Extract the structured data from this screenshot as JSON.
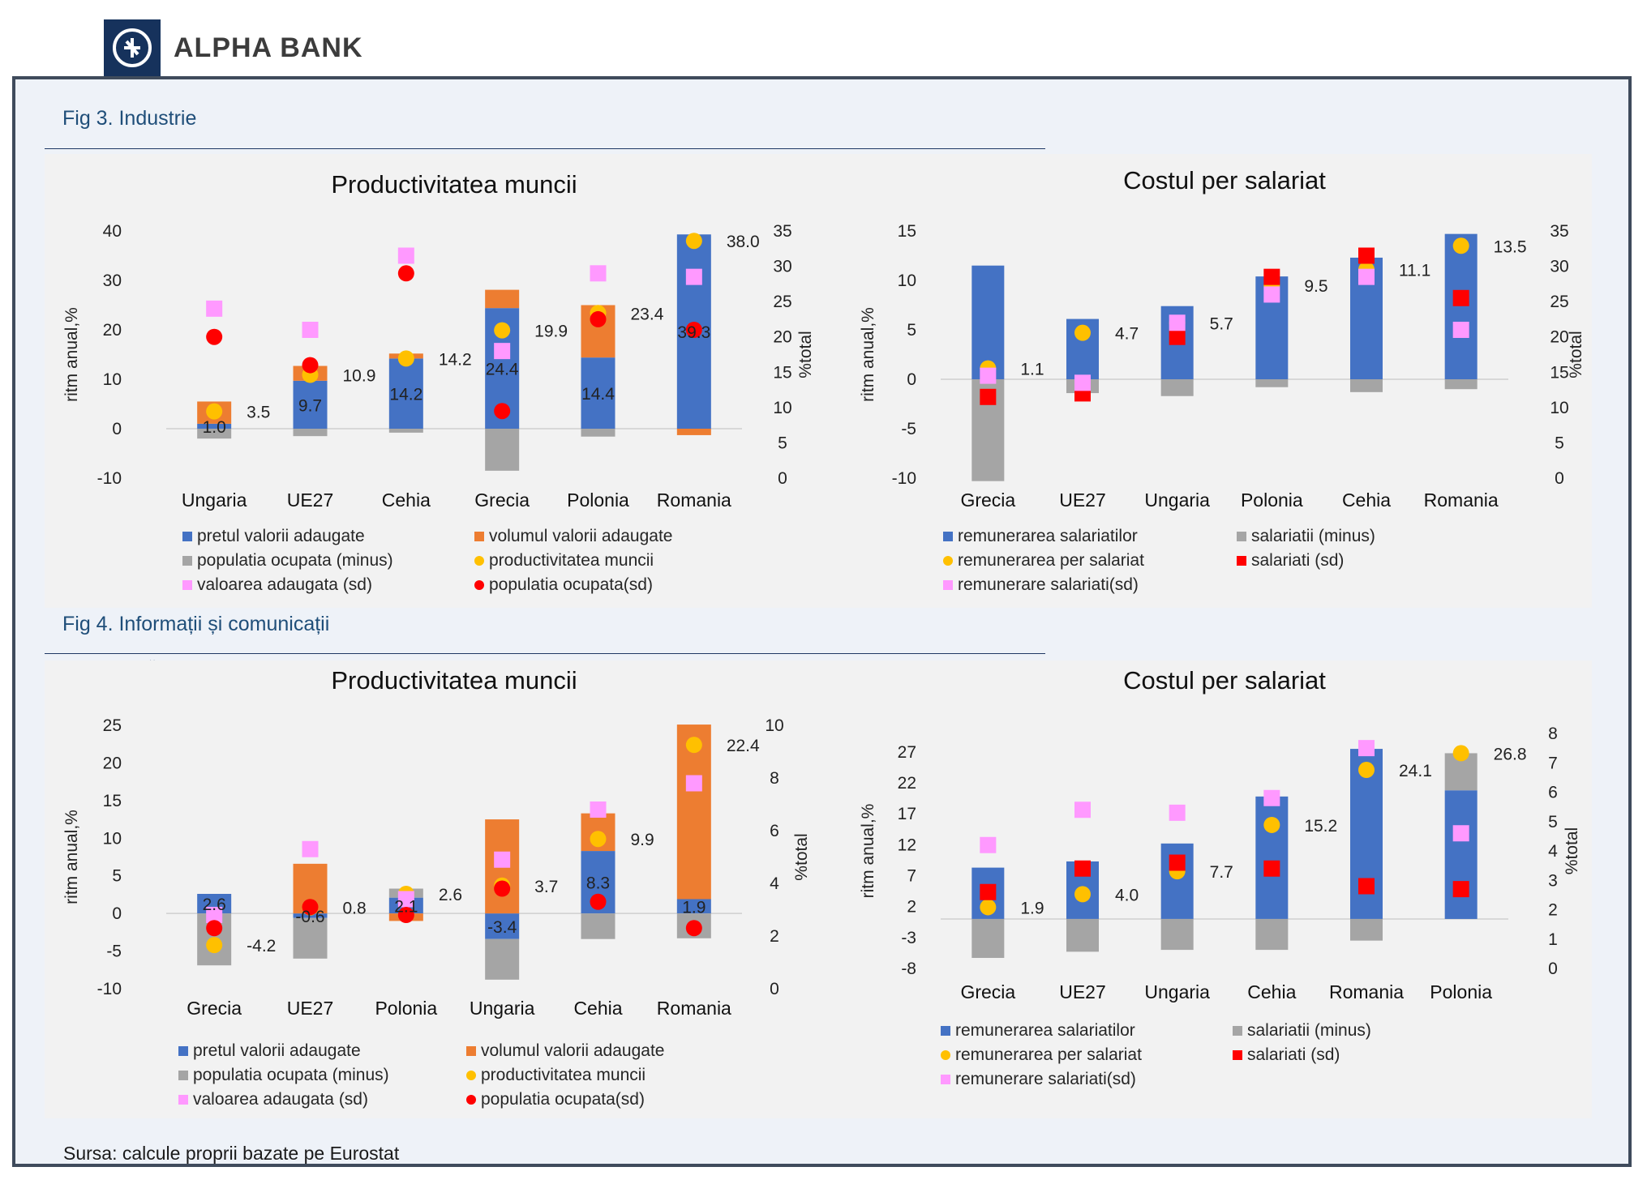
{
  "header": {
    "brand": "ALPHA BANK"
  },
  "fig3_title": "Fig 3. Industrie",
  "fig4_title": "Fig 4. Informații și comunicații",
  "source": "Sursa: calcule proprii bazate pe Eurostat",
  "colors": {
    "blue": "#4472c4",
    "orange": "#ed7d31",
    "gray": "#a5a5a5",
    "yellow": "#ffc000",
    "pink": "#ff99ff",
    "red": "#ff0000",
    "frame": "#3f4b5c",
    "title_blue": "#1f4e79"
  },
  "chart_data": [
    {
      "id": "c1",
      "type": "bar",
      "title": "Productivitatea muncii",
      "ylabel": "ritm anual,%",
      "y2label": "%total",
      "ylim": [
        -10,
        40
      ],
      "yticks": [
        -10,
        0,
        10,
        20,
        30,
        40
      ],
      "y2lim": [
        0,
        35
      ],
      "y2ticks": [
        0,
        5,
        10,
        15,
        20,
        25,
        30,
        35
      ],
      "categories": [
        "Ungaria",
        "UE27",
        "Cehia",
        "Grecia",
        "Polonia",
        "Romania"
      ],
      "bars": [
        {
          "name": "pretul valorii adaugate",
          "color": "blue",
          "values": [
            1.0,
            9.7,
            14.2,
            24.4,
            14.4,
            39.3
          ]
        },
        {
          "name": "volumul valorii adaugate",
          "color": "orange",
          "values": [
            4.5,
            3.0,
            1.0,
            3.7,
            10.6,
            -1.3
          ]
        },
        {
          "name": "populatia ocupata (minus)",
          "color": "gray",
          "values": [
            -2.0,
            -1.5,
            -0.8,
            -8.5,
            -1.6,
            0
          ]
        }
      ],
      "markers": [
        {
          "name": "productivitatea muncii",
          "color": "yellow",
          "shape": "circle",
          "axis": "left",
          "values": [
            3.5,
            10.9,
            14.2,
            19.9,
            23.4,
            38.0
          ]
        },
        {
          "name": "valoarea adaugata (sd)",
          "color": "pink",
          "shape": "square",
          "axis": "right",
          "values": [
            24.0,
            21.0,
            31.5,
            18.0,
            29.0,
            28.5
          ]
        },
        {
          "name": "populatia ocupata(sd)",
          "color": "red",
          "shape": "circle",
          "axis": "right",
          "values": [
            20.0,
            16.0,
            29.0,
            9.5,
            22.5,
            21.0
          ]
        }
      ],
      "labels_top": [
        "3.5",
        "10.9",
        "14.2",
        "19.9",
        "23.4",
        "38.0"
      ],
      "labels_inner": [
        "1.0",
        "9.7",
        "14.2",
        "24.4",
        "14.4",
        "39.3"
      ],
      "legend": [
        "pretul valorii adaugate",
        "volumul valorii adaugate",
        "populatia ocupata (minus)",
        "productivitatea muncii",
        "valoarea adaugata (sd)",
        "populatia ocupata(sd)"
      ]
    },
    {
      "id": "c2",
      "type": "bar",
      "title": "Costul per salariat",
      "ylabel": "ritm anual,%",
      "y2label": "%total",
      "ylim": [
        -10,
        15
      ],
      "yticks": [
        -10,
        -5,
        0,
        5,
        10,
        15
      ],
      "y2lim": [
        0,
        35
      ],
      "y2ticks": [
        0,
        5,
        10,
        15,
        20,
        25,
        30,
        35
      ],
      "categories": [
        "Grecia",
        "UE27",
        "Ungaria",
        "Polonia",
        "Cehia",
        "Romania"
      ],
      "bars": [
        {
          "name": "remunerarea salariatilor",
          "color": "blue",
          "values": [
            11.5,
            6.1,
            7.4,
            10.4,
            12.3,
            14.7
          ]
        },
        {
          "name": "salariatii (minus)",
          "color": "gray",
          "values": [
            -10.3,
            -1.4,
            -1.7,
            -0.8,
            -1.3,
            -1.0
          ]
        }
      ],
      "markers": [
        {
          "name": "remunerarea per salariat",
          "color": "yellow",
          "shape": "circle",
          "axis": "left",
          "values": [
            1.1,
            4.7,
            5.7,
            9.5,
            11.1,
            13.5
          ]
        },
        {
          "name": "salariati (sd)",
          "color": "red",
          "shape": "square",
          "axis": "right",
          "values": [
            11.5,
            12.0,
            20.0,
            28.5,
            31.5,
            25.5
          ]
        },
        {
          "name": "remunerare salariati(sd)",
          "color": "pink",
          "shape": "square",
          "axis": "right",
          "values": [
            14.5,
            13.5,
            22.0,
            26.0,
            28.5,
            21.0
          ]
        }
      ],
      "labels_top": [
        "1.1",
        "4.7",
        "5.7",
        "9.5",
        "11.1",
        "13.5"
      ],
      "labels_inner": [
        "",
        "",
        "",
        "",
        "",
        ""
      ],
      "legend": [
        "remunerarea salariatilor",
        "salariatii (minus)",
        "remunerarea per salariat",
        "salariati (sd)",
        "remunerare salariati(sd)"
      ]
    },
    {
      "id": "c3",
      "type": "bar",
      "title": "Productivitatea muncii",
      "ylabel": "ritm anual,%",
      "y2label": "%total",
      "ylim": [
        -10,
        25
      ],
      "yticks": [
        -10,
        -5,
        0,
        5,
        10,
        15,
        20,
        25
      ],
      "y2lim": [
        0,
        10
      ],
      "y2ticks": [
        0,
        2,
        4,
        6,
        8,
        10
      ],
      "categories": [
        "Grecia",
        "UE27",
        "Polonia",
        "Ungaria",
        "Cehia",
        "Romania"
      ],
      "bars": [
        {
          "name": "pretul valorii adaugate",
          "color": "blue",
          "values": [
            2.6,
            -0.6,
            2.1,
            -3.4,
            8.3,
            1.9
          ]
        },
        {
          "name": "volumul valorii adaugate",
          "color": "orange",
          "values": [
            0,
            6.6,
            -1.0,
            12.5,
            5.0,
            23.2
          ]
        },
        {
          "name": "populatia ocupata (minus)",
          "color": "gray",
          "values": [
            -6.9,
            -5.4,
            1.2,
            -5.4,
            -3.4,
            -3.3
          ]
        }
      ],
      "markers": [
        {
          "name": "productivitatea muncii",
          "color": "yellow",
          "shape": "circle",
          "axis": "left",
          "values": [
            -4.2,
            0.8,
            2.6,
            3.7,
            9.9,
            22.4
          ]
        },
        {
          "name": "valoarea adaugata (sd)",
          "color": "pink",
          "shape": "square",
          "axis": "right",
          "values": [
            2.8,
            5.3,
            3.4,
            4.9,
            6.8,
            7.8
          ]
        },
        {
          "name": "populatia ocupata(sd)",
          "color": "red",
          "shape": "circle",
          "axis": "right",
          "values": [
            2.3,
            3.1,
            2.8,
            3.8,
            3.3,
            2.3
          ]
        }
      ],
      "labels_top": [
        "-4.2",
        "0.8",
        "2.6",
        "3.7",
        "9.9",
        "22.4"
      ],
      "labels_inner": [
        "2.6",
        "-0.6",
        "2.1",
        "-3.4",
        "8.3",
        "1.9"
      ],
      "legend": [
        "pretul valorii adaugate",
        "volumul valorii adaugate",
        "populatia ocupata (minus)",
        "productivitatea muncii",
        "valoarea adaugata (sd)",
        "populatia ocupata(sd)"
      ]
    },
    {
      "id": "c4",
      "type": "bar",
      "title": "Costul per salariat",
      "ylabel": "ritm anual,%",
      "y2label": "%total",
      "ylim": [
        -8,
        30
      ],
      "yticks": [
        -8,
        -3,
        2,
        7,
        12,
        17,
        22,
        27
      ],
      "y2lim": [
        0,
        8
      ],
      "y2ticks": [
        0,
        1,
        2,
        3,
        4,
        5,
        6,
        7,
        8
      ],
      "categories": [
        "Grecia",
        "UE27",
        "Ungaria",
        "Cehia",
        "Romania",
        "Polonia"
      ],
      "bars": [
        {
          "name": "remunerarea salariatilor",
          "color": "blue",
          "values": [
            8.3,
            9.3,
            12.2,
            19.8,
            27.5,
            20.8
          ]
        },
        {
          "name": "salariatii (minus)",
          "color": "gray",
          "values": [
            -6.3,
            -5.3,
            -5.0,
            -5.0,
            -3.5,
            6.0
          ]
        }
      ],
      "markers": [
        {
          "name": "remunerarea per salariat",
          "color": "yellow",
          "shape": "circle",
          "axis": "left",
          "values": [
            1.9,
            4.0,
            7.7,
            15.2,
            24.1,
            26.8
          ]
        },
        {
          "name": "salariati (sd)",
          "color": "red",
          "shape": "square",
          "axis": "right",
          "values": [
            2.6,
            3.4,
            3.6,
            3.4,
            2.8,
            2.7
          ]
        },
        {
          "name": "remunerare salariati(sd)",
          "color": "pink",
          "shape": "square",
          "axis": "right",
          "values": [
            4.2,
            5.4,
            5.3,
            5.8,
            7.5,
            4.6
          ]
        }
      ],
      "labels_top": [
        "1.9",
        "4.0",
        "7.7",
        "15.2",
        "24.1",
        "26.8"
      ],
      "labels_inner": [
        "",
        "",
        "",
        "",
        "",
        ""
      ],
      "legend": [
        "remunerarea salariatilor",
        "salariatii (minus)",
        "remunerarea per salariat",
        "salariati (sd)",
        "remunerare salariati(sd)"
      ]
    }
  ]
}
